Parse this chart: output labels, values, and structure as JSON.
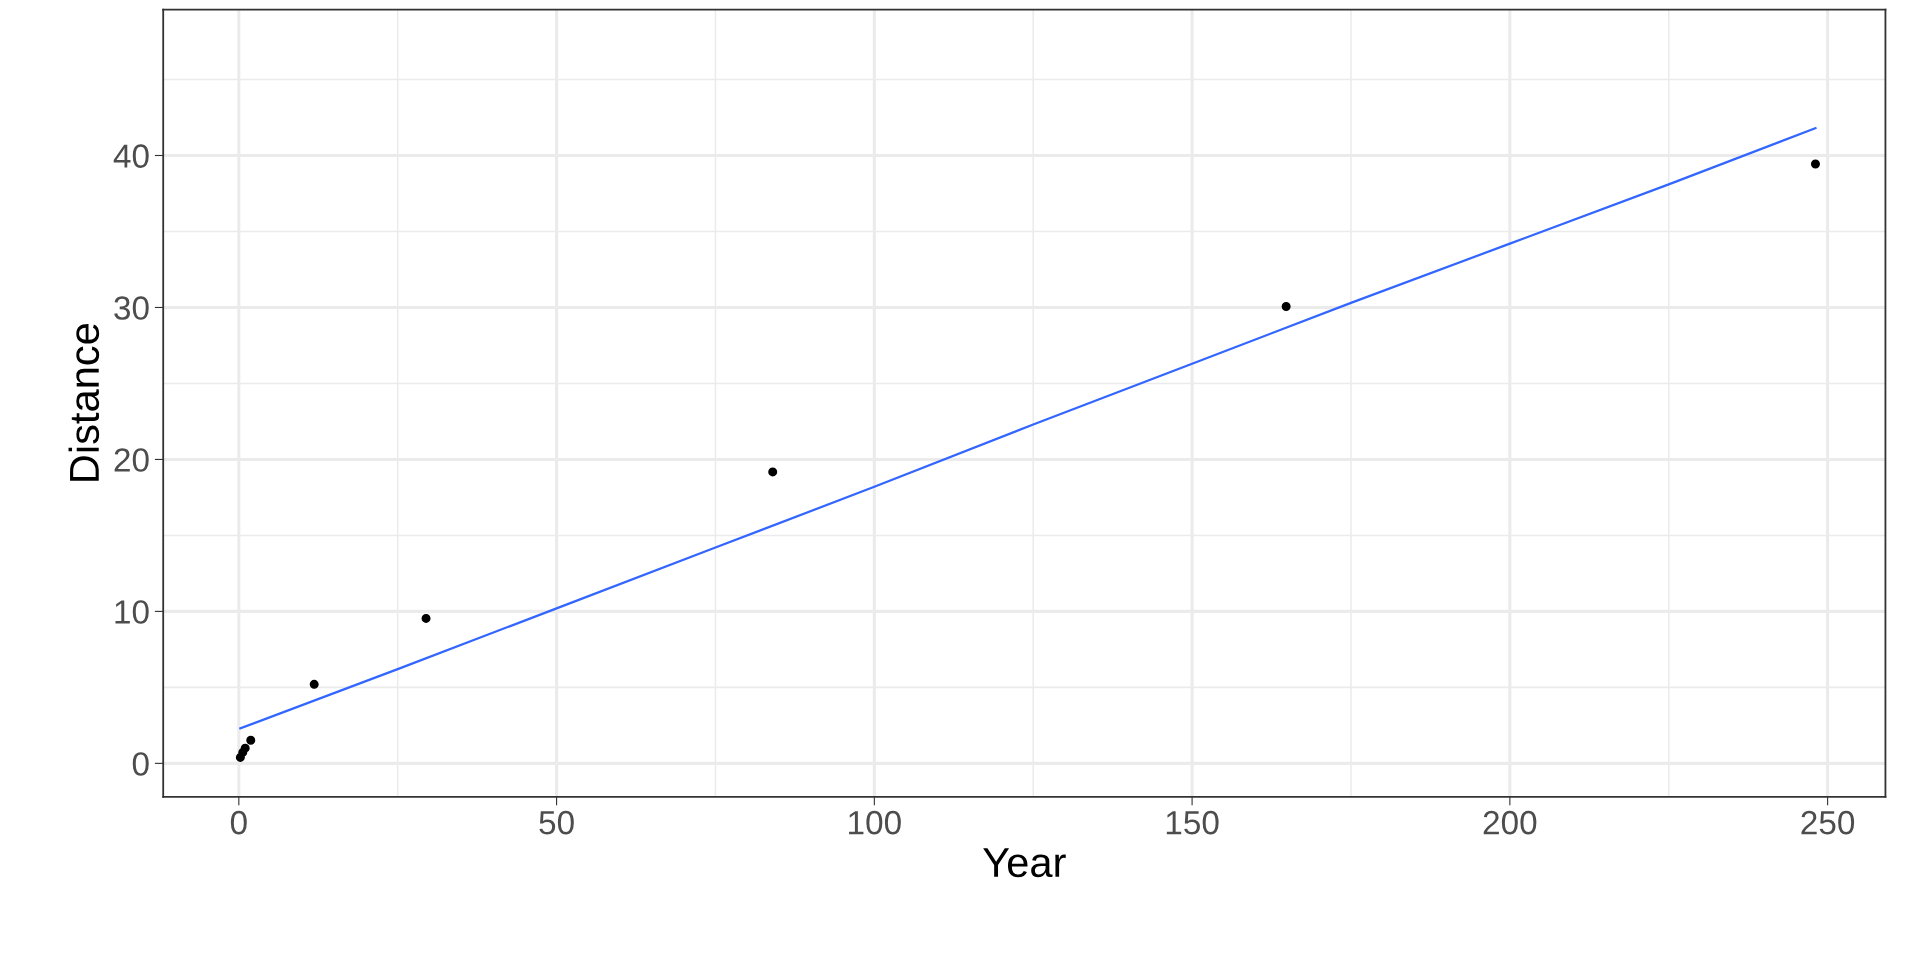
{
  "chart_data": {
    "type": "scatter",
    "xlabel": "Year",
    "ylabel": "Distance",
    "series": [
      {
        "color": "#000000",
        "marker": "circle",
        "x": [
          0.24,
          0.62,
          1.0,
          1.88,
          11.86,
          29.46,
          84.01,
          164.8,
          248.09
        ],
        "values": [
          0.39,
          0.72,
          1.0,
          1.52,
          5.2,
          9.54,
          19.18,
          30.06,
          39.44
        ]
      },
      {
        "type": "line",
        "color": "#3366ff",
        "x": [
          0.24,
          25,
          50,
          75,
          100,
          125,
          150,
          175,
          200,
          225,
          248.09
        ],
        "values": [
          2.3,
          6.2,
          10.2,
          14.2,
          18.2,
          22.3,
          26.3,
          30.3,
          34.2,
          38.1,
          41.8
        ]
      }
    ],
    "xlim": [
      -11.9,
      259.1
    ],
    "xticks": [
      0,
      50,
      100,
      150,
      200,
      250
    ],
    "ylim": [
      -2.2,
      49.6
    ],
    "yticks": [
      0,
      10,
      20,
      30,
      40
    ],
    "grid": true
  }
}
